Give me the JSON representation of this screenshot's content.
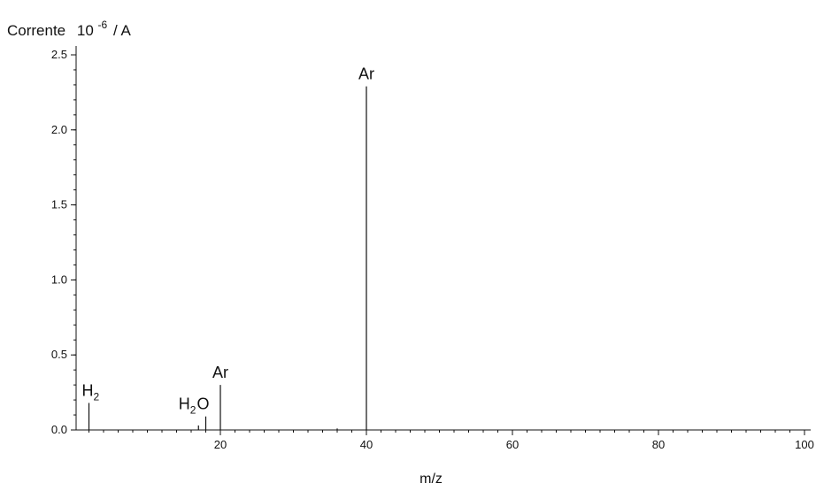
{
  "chart_data": {
    "type": "bar",
    "title": "Corrente",
    "ylabel_base": "10",
    "ylabel_exp": "-6",
    "ylabel_unit": "/ A",
    "xlabel": "m/z",
    "xlim": [
      2,
      101
    ],
    "ylim": [
      0,
      2.55
    ],
    "x_ticks": [
      20,
      40,
      60,
      80,
      100
    ],
    "y_ticks": [
      0.0,
      0.5,
      1.0,
      1.5,
      2.0,
      2.5
    ],
    "y_tick_labels": [
      "0.0",
      "0.5",
      "1.0",
      "1.5",
      "2.0",
      "2.5"
    ],
    "x_minor_step": 2,
    "y_minor_step": 0.1,
    "peaks": [
      {
        "x": 2,
        "y": 0.18
      },
      {
        "x": 17,
        "y": 0.03
      },
      {
        "x": 18,
        "y": 0.09
      },
      {
        "x": 20,
        "y": 0.3
      },
      {
        "x": 36,
        "y": 0.01
      },
      {
        "x": 40,
        "y": 2.29
      }
    ],
    "peak_labels": [
      {
        "x": 2,
        "y": 0.18,
        "text": "H",
        "sub": "2",
        "suffix": ""
      },
      {
        "x": 18,
        "y": 0.09,
        "text": "H",
        "sub": "2",
        "suffix": "O"
      },
      {
        "x": 20,
        "y": 0.3,
        "text": "Ar",
        "sub": "",
        "suffix": ""
      },
      {
        "x": 40,
        "y": 2.29,
        "text": "Ar",
        "sub": "",
        "suffix": ""
      }
    ]
  }
}
